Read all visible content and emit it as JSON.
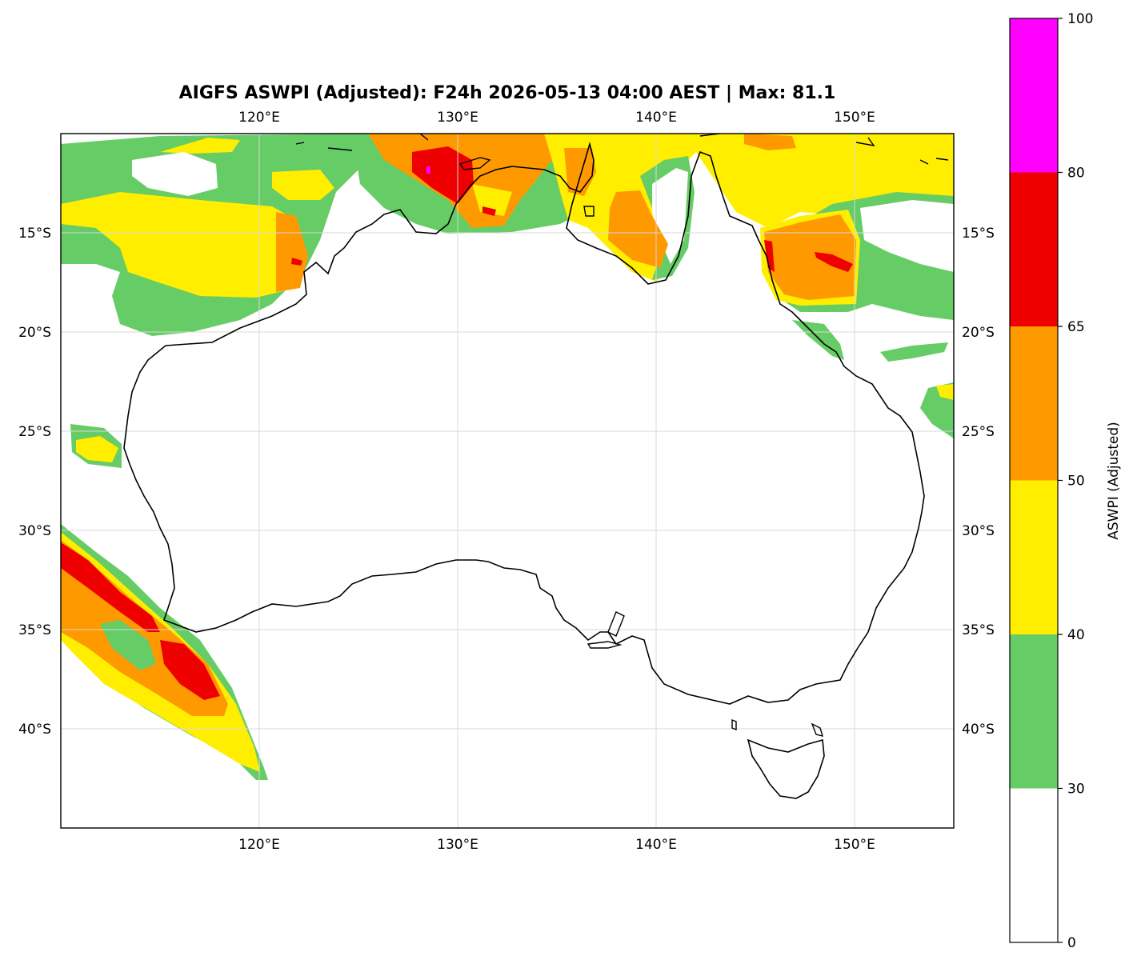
{
  "title": "AIGFS ASWPI (Adjusted): F24h 2026-05-13 04:00 AEST | Max: 81.1",
  "map": {
    "lon_range": [
      110,
      155
    ],
    "lat_range": [
      -45,
      -10
    ],
    "x_ticks": [
      {
        "lon": 120,
        "label": "120°E"
      },
      {
        "lon": 130,
        "label": "130°E"
      },
      {
        "lon": 140,
        "label": "140°E"
      },
      {
        "lon": 150,
        "label": "150°E"
      }
    ],
    "y_ticks": [
      {
        "lat": -15,
        "label": "15°S"
      },
      {
        "lat": -20,
        "label": "20°S"
      },
      {
        "lat": -25,
        "label": "25°S"
      },
      {
        "lat": -30,
        "label": "30°S"
      },
      {
        "lat": -35,
        "label": "35°S"
      },
      {
        "lat": -40,
        "label": "40°S"
      }
    ],
    "grid": true,
    "fill_levels": {
      "green": "#66cc66",
      "yellow": "#ffee00",
      "orange": "#ff9900",
      "red": "#ee0000",
      "magenta": "#ff00ff"
    }
  },
  "colorbar": {
    "label": "ASWPI (Adjusted)",
    "bounds": [
      0,
      30,
      40,
      50,
      65,
      80,
      100
    ],
    "tick_labels": [
      "0",
      "30",
      "40",
      "50",
      "65",
      "80",
      "100"
    ],
    "colors": [
      "#ffffff",
      "#66cc66",
      "#ffee00",
      "#ff9900",
      "#ee0000",
      "#ff00ff"
    ]
  }
}
